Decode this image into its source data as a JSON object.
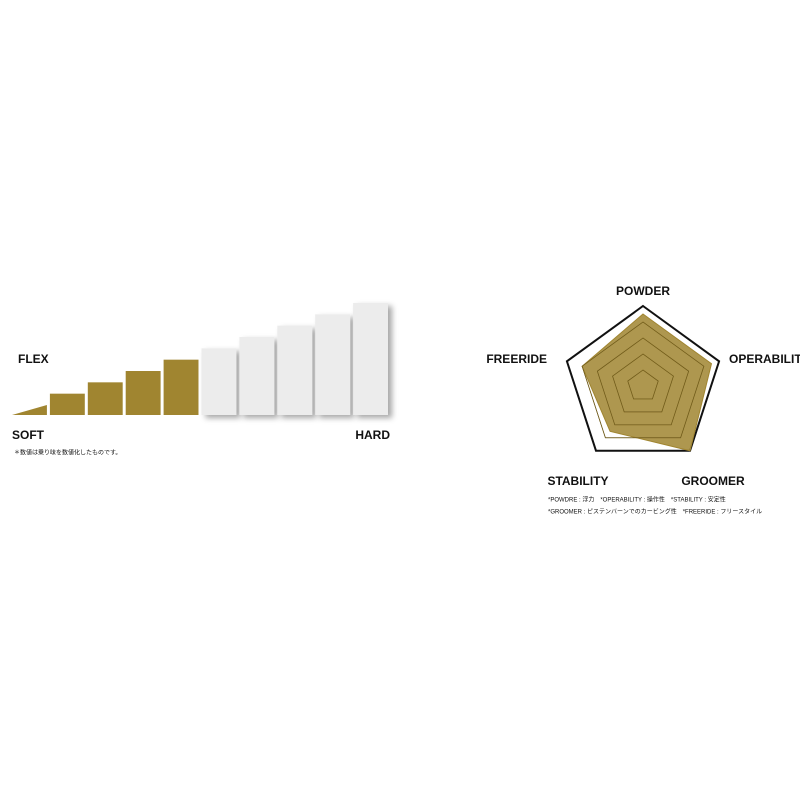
{
  "chart_data": [
    {
      "type": "flex",
      "title": "FLEX",
      "min_label": "SOFT",
      "max_label": "HARD",
      "value": 5,
      "steps": 10,
      "color": "#a08530",
      "note": "＊数値は乗り味を数値化したものです。"
    },
    {
      "type": "radar",
      "categories": [
        "POWDER",
        "OPERABILITY",
        "GROOMER",
        "STABILITY",
        "FREERIDE"
      ],
      "values": [
        4.5,
        4.5,
        5,
        3.5,
        4
      ],
      "color": "#a08530",
      "ylim": [
        0,
        5
      ],
      "yticks": [
        1,
        2,
        3,
        4,
        5
      ],
      "notes": [
        "*POWDRE : 浮力　*OPERABILITY : 操作性　*STABILITY : 安定性",
        "*GROOMER : ピステンバーンでのカービング性　*FREERIDE : フリースタイル"
      ]
    }
  ]
}
